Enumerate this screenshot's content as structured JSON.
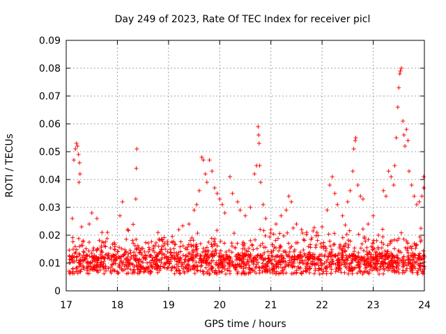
{
  "chart_data": {
    "type": "scatter",
    "title": "Day 249 of 2023, Rate Of TEC Index for receiver picl",
    "xlabel": "GPS time / hours",
    "ylabel": "ROTI / TECUs",
    "xlim": [
      17,
      24
    ],
    "ylim": [
      0,
      0.09
    ],
    "x_ticks": [
      17,
      18,
      19,
      20,
      21,
      22,
      23,
      24
    ],
    "x_tick_labels": [
      "17",
      "18",
      "19",
      "20",
      "21",
      "22",
      "23",
      "24"
    ],
    "y_ticks": [
      0,
      0.01,
      0.02,
      0.03,
      0.04,
      0.05,
      0.06,
      0.07,
      0.08,
      0.09
    ],
    "y_tick_labels": [
      "0",
      "0.01",
      "0.02",
      "0.03",
      "0.04",
      "0.05",
      "0.06",
      "0.07",
      "0.08",
      "0.09"
    ],
    "grid": true,
    "marker": "+",
    "color": "#ff0000",
    "series": [
      {
        "name": "ROTI",
        "points": [
          [
            17.15,
            0.047
          ],
          [
            17.18,
            0.051
          ],
          [
            17.2,
            0.053
          ],
          [
            17.22,
            0.052
          ],
          [
            17.24,
            0.049
          ],
          [
            17.26,
            0.046
          ],
          [
            17.27,
            0.042
          ],
          [
            17.25,
            0.039
          ],
          [
            17.12,
            0.026
          ],
          [
            17.3,
            0.023
          ],
          [
            17.5,
            0.028
          ],
          [
            17.6,
            0.026
          ],
          [
            17.7,
            0.021
          ],
          [
            17.45,
            0.024
          ],
          [
            18.05,
            0.027
          ],
          [
            18.1,
            0.032
          ],
          [
            18.2,
            0.022
          ],
          [
            18.38,
            0.051
          ],
          [
            18.37,
            0.044
          ],
          [
            18.36,
            0.033
          ],
          [
            19.2,
            0.022
          ],
          [
            19.4,
            0.024
          ],
          [
            19.5,
            0.029
          ],
          [
            19.55,
            0.031
          ],
          [
            19.6,
            0.036
          ],
          [
            19.65,
            0.048
          ],
          [
            19.68,
            0.047
          ],
          [
            19.72,
            0.042
          ],
          [
            19.75,
            0.039
          ],
          [
            19.8,
            0.047
          ],
          [
            19.85,
            0.043
          ],
          [
            19.9,
            0.037
          ],
          [
            19.95,
            0.035
          ],
          [
            20.0,
            0.033
          ],
          [
            20.05,
            0.031
          ],
          [
            20.1,
            0.028
          ],
          [
            20.2,
            0.041
          ],
          [
            20.25,
            0.035
          ],
          [
            20.35,
            0.032
          ],
          [
            20.4,
            0.029
          ],
          [
            20.5,
            0.027
          ],
          [
            20.6,
            0.03
          ],
          [
            20.68,
            0.042
          ],
          [
            20.72,
            0.045
          ],
          [
            20.75,
            0.059
          ],
          [
            20.76,
            0.056
          ],
          [
            20.77,
            0.053
          ],
          [
            20.78,
            0.045
          ],
          [
            20.8,
            0.039
          ],
          [
            20.85,
            0.031
          ],
          [
            20.9,
            0.026
          ],
          [
            21.0,
            0.022
          ],
          [
            21.1,
            0.024
          ],
          [
            21.2,
            0.027
          ],
          [
            21.3,
            0.029
          ],
          [
            21.35,
            0.034
          ],
          [
            21.4,
            0.032
          ],
          [
            21.5,
            0.024
          ],
          [
            21.6,
            0.022
          ],
          [
            21.7,
            0.021
          ],
          [
            21.8,
            0.019
          ],
          [
            21.9,
            0.021
          ],
          [
            22.0,
            0.023
          ],
          [
            22.1,
            0.029
          ],
          [
            22.15,
            0.038
          ],
          [
            22.2,
            0.041
          ],
          [
            22.25,
            0.035
          ],
          [
            22.3,
            0.031
          ],
          [
            22.4,
            0.027
          ],
          [
            22.5,
            0.032
          ],
          [
            22.55,
            0.036
          ],
          [
            22.6,
            0.043
          ],
          [
            22.62,
            0.051
          ],
          [
            22.65,
            0.054
          ],
          [
            22.66,
            0.055
          ],
          [
            22.7,
            0.038
          ],
          [
            22.75,
            0.034
          ],
          [
            22.8,
            0.033
          ],
          [
            22.9,
            0.024
          ],
          [
            23.0,
            0.027
          ],
          [
            23.1,
            0.02
          ],
          [
            23.2,
            0.036
          ],
          [
            23.25,
            0.034
          ],
          [
            23.3,
            0.043
          ],
          [
            23.35,
            0.041
          ],
          [
            23.4,
            0.038
          ],
          [
            23.42,
            0.045
          ],
          [
            23.45,
            0.055
          ],
          [
            23.48,
            0.066
          ],
          [
            23.5,
            0.073
          ],
          [
            23.52,
            0.078
          ],
          [
            23.53,
            0.079
          ],
          [
            23.55,
            0.08
          ],
          [
            23.58,
            0.061
          ],
          [
            23.6,
            0.056
          ],
          [
            23.62,
            0.052
          ],
          [
            23.65,
            0.058
          ],
          [
            23.68,
            0.054
          ],
          [
            23.7,
            0.043
          ],
          [
            23.75,
            0.038
          ],
          [
            23.8,
            0.034
          ],
          [
            23.85,
            0.031
          ],
          [
            23.9,
            0.032
          ],
          [
            23.95,
            0.034
          ],
          [
            24.0,
            0.041
          ],
          [
            24.0,
            0.037
          ]
        ]
      }
    ]
  }
}
